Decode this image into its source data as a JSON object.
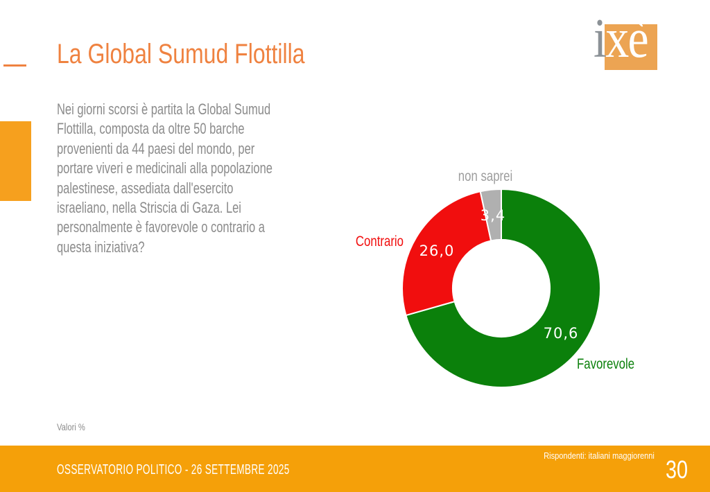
{
  "slide": {
    "title": "La Global Sumud Flottilla",
    "intro_lines": [
      "Nei giorni scorsi è partita la Global Sumud",
      "Flottilla, composta da oltre 50 barche",
      "provenienti da 44 paesi del mondo, per",
      "portare viveri e medicinali alla popolazione",
      "palestinese, assediata dall'esercito",
      "israeliano, nella Striscia di Gaza. Lei",
      "personalmente è favorevole o contrario a",
      "questa iniziativa?"
    ],
    "valori_note": "Valori %",
    "footer_title": "OSSERVATORIO POLITICO - 26 SETTEMBRE 2025",
    "respondents_note": "Rispondenti: italiani maggiorenni",
    "page_number": "30",
    "logo": {
      "letter_i": "i",
      "letters_xe": "xè"
    }
  },
  "colors": {
    "title_orange": "#ef8240",
    "accent_orange": "#f6a01e",
    "footer_orange": "#f5a009",
    "logo_orange": "#eca453",
    "body_gray": "#8b8b8b",
    "label_gray": "#9d9d9d"
  },
  "chart_data": {
    "type": "pie",
    "subtype": "donut",
    "title": "",
    "units": "percent",
    "start_angle_deg": 0,
    "direction": "clockwise",
    "donut_hole_ratio": 0.49,
    "legend_position": "outside-labels",
    "categories": [
      "Favorevole",
      "Contrario",
      "non saprei"
    ],
    "values": [
      70.6,
      26.0,
      3.4
    ],
    "segments": [
      {
        "label": "Favorevole",
        "value": 70.6,
        "display": "70,6",
        "color": "#0b800b",
        "label_color": "#0b800b"
      },
      {
        "label": "Contrario",
        "value": 26.0,
        "display": "26,0",
        "color": "#f10e0e",
        "label_color": "#f10e0e"
      },
      {
        "label": "non saprei",
        "value": 3.4,
        "display": "3,4",
        "color": "#b0b0b0",
        "label_color": "#9d9d9d"
      }
    ]
  }
}
